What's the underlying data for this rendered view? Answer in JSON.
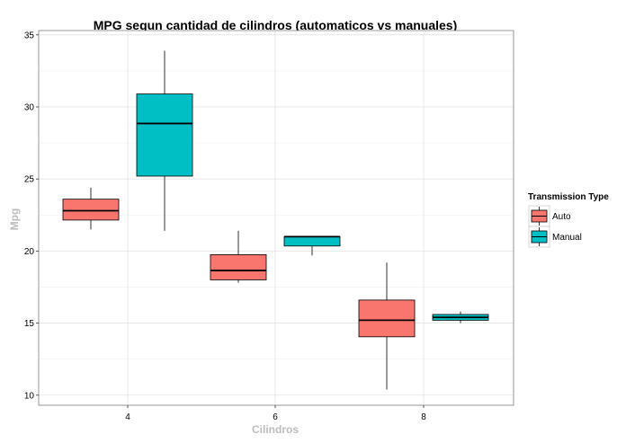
{
  "chart_data": {
    "type": "boxplot",
    "title": "MPG segun cantidad de cilindros (automaticos vs manuales)",
    "xlabel": "Cilindros",
    "ylabel": "Mpg",
    "categories": [
      "4",
      "6",
      "8"
    ],
    "ylim": [
      9.3,
      35.3
    ],
    "yticks": [
      10,
      15,
      20,
      25,
      30,
      35
    ],
    "grid": true,
    "legend": {
      "title": "Transmission Type",
      "position": "right",
      "entries": [
        "Auto",
        "Manual"
      ]
    },
    "series": [
      {
        "name": "Auto",
        "color": "#f8766d",
        "boxes": [
          {
            "category": "4",
            "min": 21.5,
            "q1": 22.15,
            "median": 22.8,
            "q3": 23.6,
            "max": 24.4
          },
          {
            "category": "6",
            "min": 17.8,
            "q1": 18.0,
            "median": 18.65,
            "q3": 19.75,
            "max": 21.4
          },
          {
            "category": "8",
            "min": 10.4,
            "q1": 14.05,
            "median": 15.2,
            "q3": 16.6,
            "max": 19.2
          }
        ]
      },
      {
        "name": "Manual",
        "color": "#00bfc4",
        "boxes": [
          {
            "category": "4",
            "min": 21.4,
            "q1": 25.2,
            "median": 28.85,
            "q3": 30.9,
            "max": 33.9
          },
          {
            "category": "6",
            "min": 19.7,
            "q1": 20.35,
            "median": 21.0,
            "q3": 21.0,
            "max": 21.0
          },
          {
            "category": "8",
            "min": 15.0,
            "q1": 15.2,
            "median": 15.4,
            "q3": 15.6,
            "max": 15.8
          }
        ]
      }
    ]
  }
}
